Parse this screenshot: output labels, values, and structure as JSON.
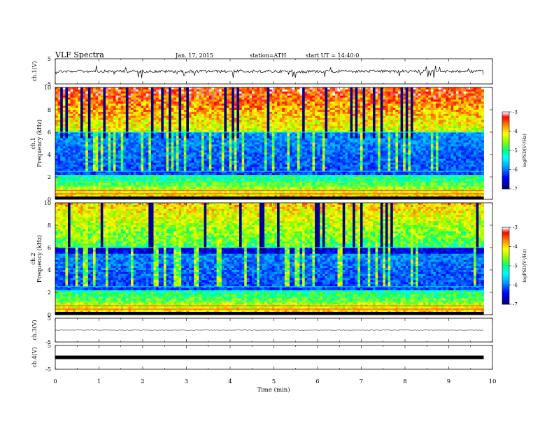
{
  "header": {
    "title": "VLF Spectra",
    "date": "Jan. 17, 2015",
    "station": "station=ATH",
    "start": "start UT =  14:40:0"
  },
  "colorbar": {
    "label": "logPSD(V²/Hz)",
    "ticks": [
      "-3",
      "-4",
      "-5",
      "-6",
      "-7"
    ],
    "colors": [
      "#000080",
      "#0000ff",
      "#00a0ff",
      "#00ffff",
      "#00ff80",
      "#80ff00",
      "#ffff00",
      "#ff8000",
      "#ff0000",
      "#ffffff"
    ]
  },
  "chart_data": [
    {
      "type": "line",
      "ylabel": "ch.1(V)",
      "ylim": [
        -5,
        5
      ],
      "yticks": [
        "5",
        "-5"
      ],
      "xlim": [
        0,
        10
      ],
      "description_level": 0.0
    },
    {
      "type": "heatmap",
      "ylabel": "ch.1 Frequency (kHz)",
      "ylim": [
        0,
        10
      ],
      "yticks": [
        "10",
        "8",
        "6",
        "4",
        "2",
        "0"
      ],
      "xlim": [
        0,
        10
      ],
      "data_end_min": 9.8,
      "clim": [
        -7,
        -3
      ]
    },
    {
      "type": "heatmap",
      "ylabel": "ch.2 Frequency (kHz)",
      "ylim": [
        0,
        10
      ],
      "yticks": [
        "10",
        "8",
        "6",
        "4",
        "2",
        "0"
      ],
      "xlim": [
        0,
        10
      ],
      "data_end_min": 9.8,
      "clim": [
        -7,
        -3
      ]
    },
    {
      "type": "line",
      "ylabel": "ch.3(V)",
      "ylim": [
        -5,
        5
      ],
      "yticks": [
        "5",
        "-5"
      ],
      "xlim": [
        0,
        10
      ]
    },
    {
      "type": "line",
      "ylabel": "ch.4(V)",
      "ylim": [
        -5,
        5
      ],
      "yticks": [
        "5",
        "-5"
      ],
      "xlim": [
        0,
        10
      ],
      "xlabel": "Time (min)",
      "xticks": [
        "0",
        "1",
        "2",
        "3",
        "4",
        "5",
        "6",
        "7",
        "8",
        "9",
        "10"
      ]
    }
  ]
}
